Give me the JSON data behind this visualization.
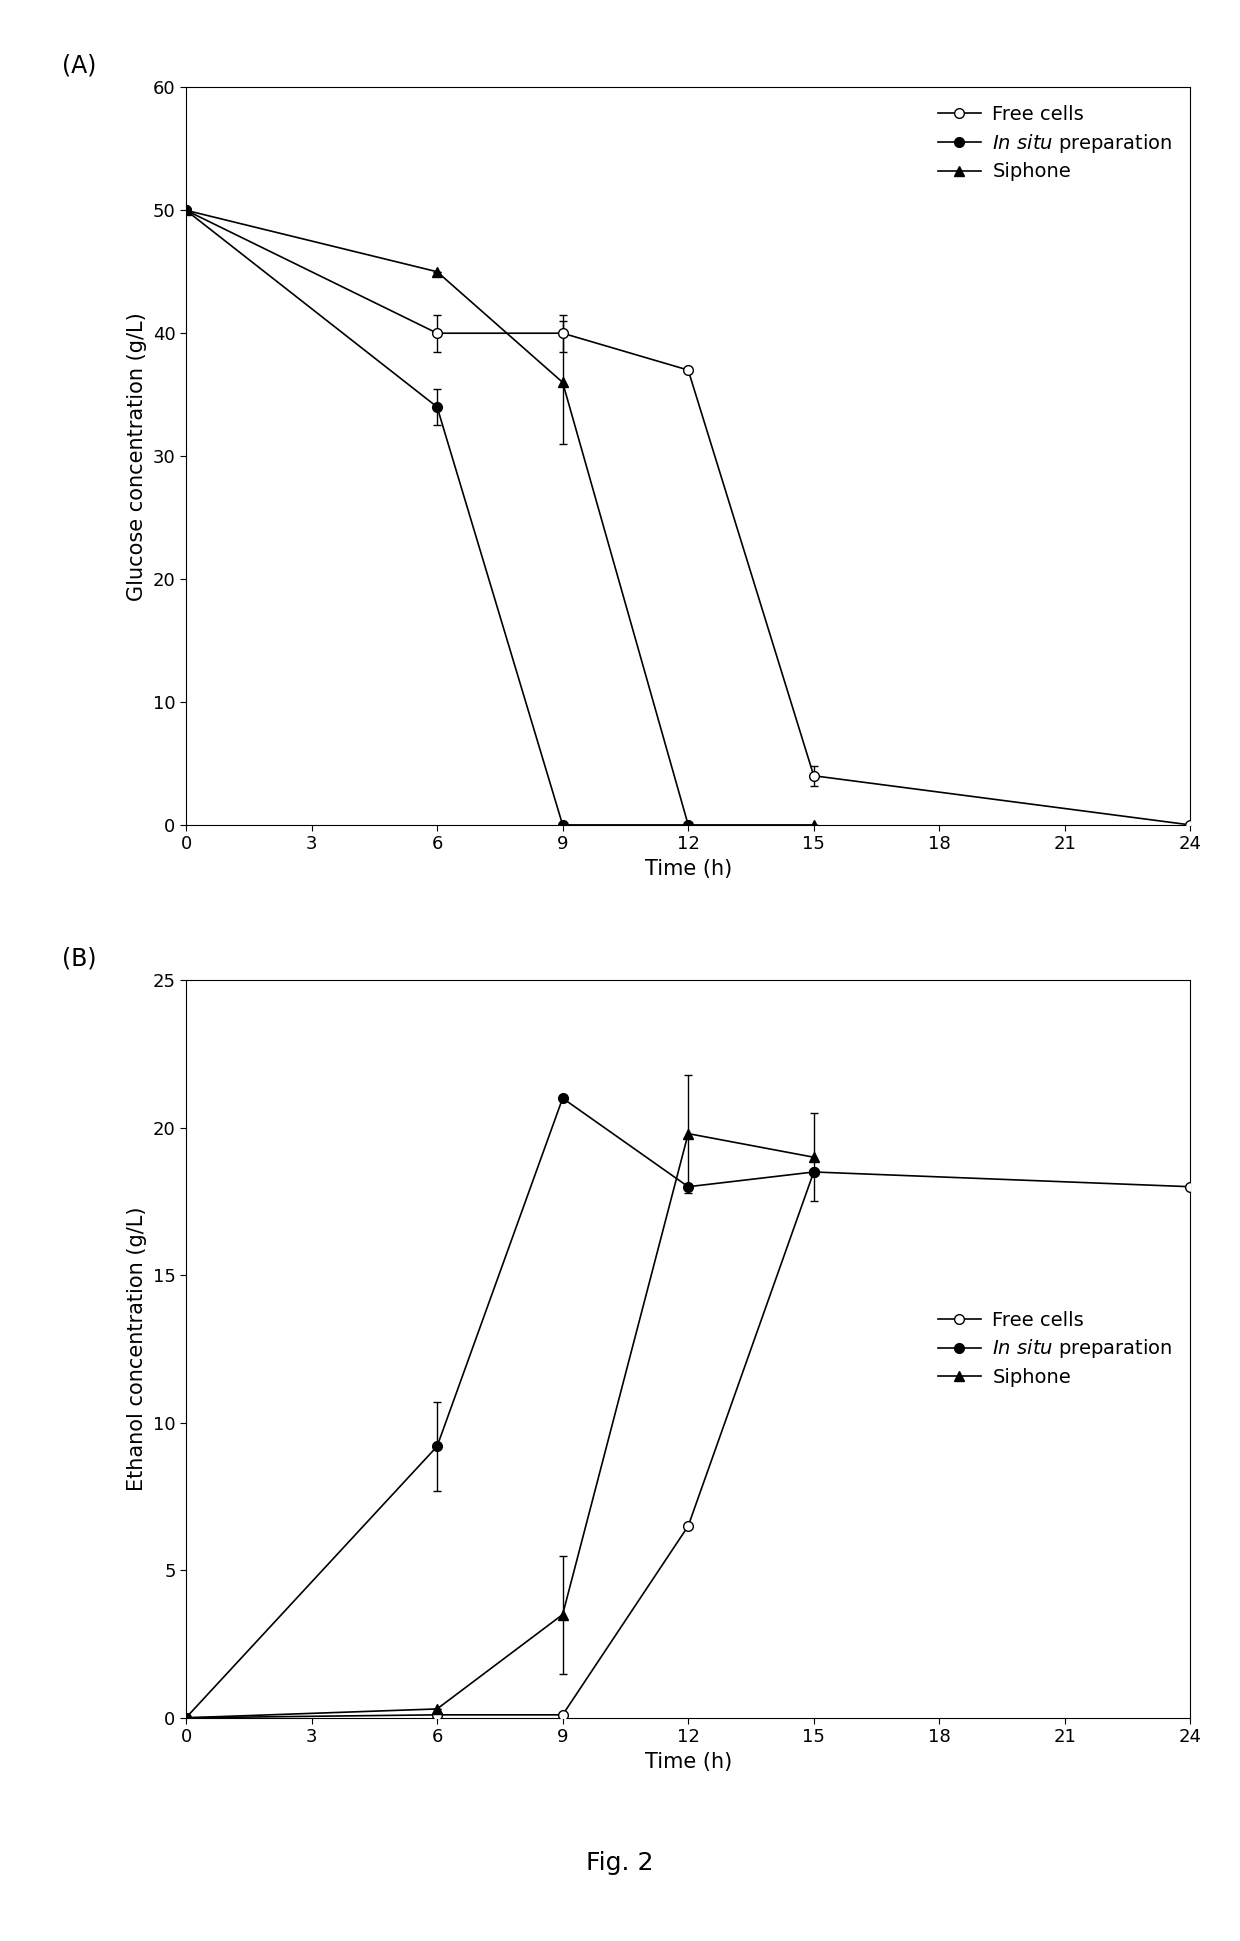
{
  "panel_A": {
    "ylabel": "Glucose concentration (g/L)",
    "xlabel": "Time (h)",
    "ylim": [
      0,
      60
    ],
    "xlim": [
      0,
      24
    ],
    "yticks": [
      0,
      10,
      20,
      30,
      40,
      50,
      60
    ],
    "xticks": [
      0,
      3,
      6,
      9,
      12,
      15,
      18,
      21,
      24
    ],
    "free_cells": {
      "x": [
        0,
        6,
        9,
        12,
        15,
        24
      ],
      "y": [
        50,
        40,
        40,
        37,
        4,
        0
      ],
      "yerr": [
        0,
        1.5,
        1.5,
        0,
        0.8,
        0
      ]
    },
    "in_situ": {
      "x": [
        0,
        6,
        9,
        12
      ],
      "y": [
        50,
        34,
        0,
        0
      ],
      "yerr": [
        0,
        1.5,
        0,
        0
      ]
    },
    "siphone": {
      "x": [
        0,
        6,
        9,
        12,
        15
      ],
      "y": [
        50,
        45,
        36,
        0,
        0
      ],
      "yerr": [
        0,
        0,
        5,
        0,
        0
      ]
    },
    "legend_loc": "upper right"
  },
  "panel_B": {
    "ylabel": "Ethanol concentration (g/L)",
    "xlabel": "Time (h)",
    "ylim": [
      0,
      25
    ],
    "xlim": [
      0,
      24
    ],
    "yticks": [
      0,
      5,
      10,
      15,
      20,
      25
    ],
    "xticks": [
      0,
      3,
      6,
      9,
      12,
      15,
      18,
      21,
      24
    ],
    "free_cells": {
      "x": [
        0,
        6,
        9,
        12,
        15,
        24
      ],
      "y": [
        0,
        0.1,
        0.1,
        6.5,
        18.5,
        18.0
      ],
      "yerr": [
        0,
        0,
        0,
        0,
        0,
        0
      ]
    },
    "in_situ": {
      "x": [
        0,
        6,
        9,
        12,
        15
      ],
      "y": [
        0,
        9.2,
        21.0,
        18.0,
        18.5
      ],
      "yerr": [
        0,
        1.5,
        0,
        0,
        0
      ]
    },
    "siphone": {
      "x": [
        0,
        6,
        9,
        12,
        15
      ],
      "y": [
        0,
        0.3,
        3.5,
        19.8,
        19.0
      ],
      "yerr": [
        0,
        0,
        2.0,
        2.0,
        1.5
      ]
    },
    "legend_loc": "center right"
  },
  "fig_label": "Fig. 2",
  "line_color": "#000000",
  "marker_size": 7,
  "line_width": 1.2,
  "font_size": 14,
  "label_font_size": 15,
  "tick_font_size": 13,
  "panel_label_fontsize": 17,
  "fig_label_fontsize": 18
}
